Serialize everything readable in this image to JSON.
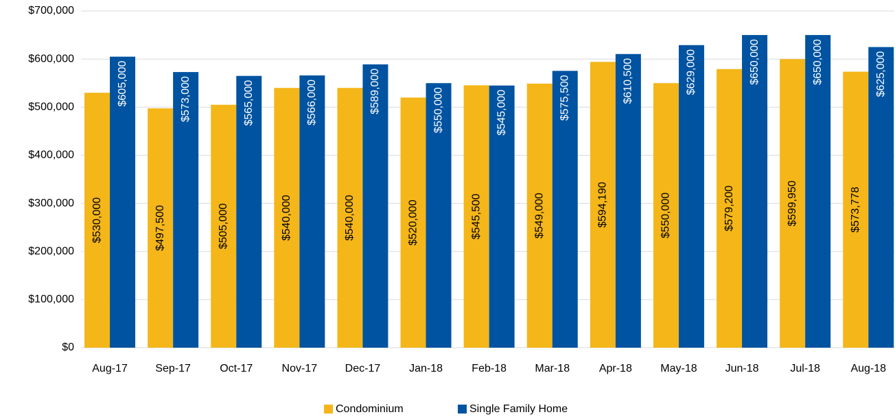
{
  "chart_data": {
    "type": "bar",
    "categories": [
      "Aug-17",
      "Sep-17",
      "Oct-17",
      "Nov-17",
      "Dec-17",
      "Jan-18",
      "Feb-18",
      "Mar-18",
      "Apr-18",
      "May-18",
      "Jun-18",
      "Jul-18",
      "Aug-18"
    ],
    "series": [
      {
        "name": "Condominium",
        "color": "#f4b619",
        "values": [
          530000,
          497500,
          505000,
          540000,
          540000,
          520000,
          545500,
          549000,
          594190,
          550000,
          579200,
          599950,
          573778
        ],
        "value_labels": [
          "$530,000",
          "$497,500",
          "$505,000",
          "$540,000",
          "$540,000",
          "$520,000",
          "$545,500",
          "$549,000",
          "$594,190",
          "$550,000",
          "$579,200",
          "$599,950",
          "$573,778"
        ]
      },
      {
        "name": "Single Family Home",
        "color": "#0053a0",
        "values": [
          605000,
          573000,
          565000,
          566000,
          589000,
          550000,
          545000,
          575500,
          610500,
          629000,
          650000,
          650000,
          625000
        ],
        "value_labels": [
          "$605,000",
          "$573,000",
          "$565,000",
          "$566,000",
          "$589,000",
          "$550,000",
          "$545,000",
          "$575,500",
          "$610,500",
          "$629,000",
          "$650,000",
          "$650,000",
          "$625,000"
        ]
      }
    ],
    "ylim": [
      0,
      700000
    ],
    "yticks": [
      {
        "value": 0,
        "label": "$0"
      },
      {
        "value": 100000,
        "label": "$100,000"
      },
      {
        "value": 200000,
        "label": "$200,000"
      },
      {
        "value": 300000,
        "label": "$300,000"
      },
      {
        "value": 400000,
        "label": "$400,000"
      },
      {
        "value": 500000,
        "label": "$500,000"
      },
      {
        "value": 600000,
        "label": "$600,000"
      },
      {
        "value": 700000,
        "label": "$700,000"
      }
    ],
    "grid": true,
    "legend": "bottom"
  }
}
